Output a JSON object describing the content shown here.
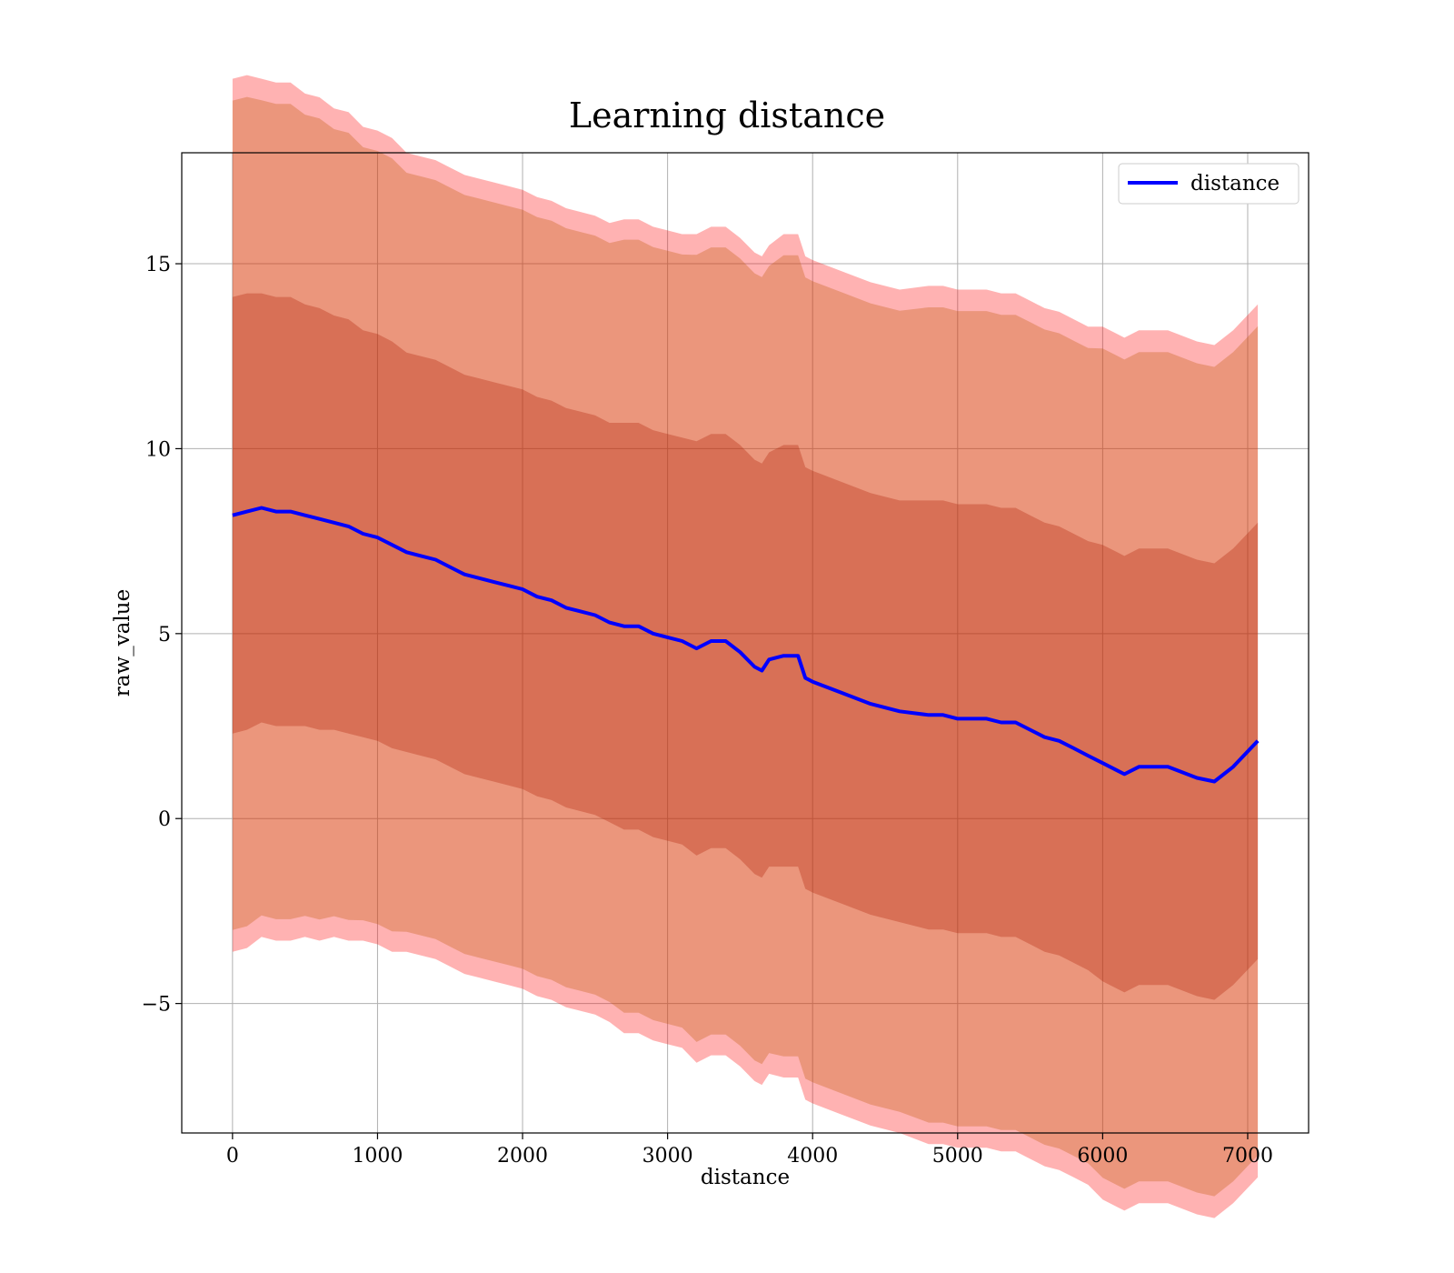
{
  "chart_data": {
    "type": "line",
    "title": "Learning distance",
    "xlabel": "distance",
    "ylabel": "raw_value",
    "xlim": [
      -350,
      7420
    ],
    "ylim": [
      -8.5,
      18
    ],
    "x_ticks": [
      0,
      1000,
      2000,
      3000,
      4000,
      5000,
      6000,
      7000
    ],
    "x_tick_labels": [
      "0",
      "1000",
      "2000",
      "3000",
      "4000",
      "5000",
      "6000",
      "7000"
    ],
    "y_ticks": [
      -5,
      0,
      5,
      10,
      15
    ],
    "y_tick_labels": [
      "−5",
      "0",
      "5",
      "10",
      "15"
    ],
    "grid": true,
    "legend_position": "top-right",
    "series": [
      {
        "name": "distance",
        "color": "#0000ff",
        "x": [
          0,
          100,
          200,
          300,
          400,
          500,
          600,
          700,
          800,
          900,
          1000,
          1100,
          1200,
          1300,
          1400,
          1500,
          1600,
          1700,
          1800,
          1900,
          2000,
          2100,
          2200,
          2300,
          2400,
          2500,
          2600,
          2700,
          2800,
          2900,
          3000,
          3100,
          3200,
          3300,
          3400,
          3500,
          3600,
          3650,
          3700,
          3800,
          3900,
          3950,
          4000,
          4200,
          4400,
          4600,
          4800,
          4900,
          5000,
          5100,
          5200,
          5300,
          5400,
          5500,
          5600,
          5700,
          5800,
          5900,
          6000,
          6100,
          6150,
          6250,
          6450,
          6650,
          6770,
          6900,
          7070
        ],
        "y": [
          8.2,
          8.3,
          8.4,
          8.3,
          8.3,
          8.2,
          8.1,
          8.0,
          7.9,
          7.7,
          7.6,
          7.4,
          7.2,
          7.1,
          7.0,
          6.8,
          6.6,
          6.5,
          6.4,
          6.3,
          6.2,
          6.0,
          5.9,
          5.7,
          5.6,
          5.5,
          5.3,
          5.2,
          5.2,
          5.0,
          4.9,
          4.8,
          4.6,
          4.8,
          4.8,
          4.5,
          4.1,
          4.0,
          4.3,
          4.4,
          4.4,
          3.8,
          3.7,
          3.4,
          3.1,
          2.9,
          2.8,
          2.8,
          2.7,
          2.7,
          2.7,
          2.6,
          2.6,
          2.4,
          2.2,
          2.1,
          1.9,
          1.7,
          1.5,
          1.3,
          1.2,
          1.4,
          1.4,
          1.1,
          1.0,
          1.4,
          2.1
        ],
        "std": [
          5.9,
          5.9,
          5.8,
          5.8,
          5.8,
          5.7,
          5.7,
          5.6,
          5.6,
          5.5,
          5.5,
          5.5,
          5.4,
          5.4,
          5.4,
          5.4,
          5.4,
          5.4,
          5.4,
          5.4,
          5.4,
          5.4,
          5.4,
          5.4,
          5.4,
          5.4,
          5.4,
          5.5,
          5.5,
          5.5,
          5.5,
          5.5,
          5.6,
          5.6,
          5.6,
          5.6,
          5.6,
          5.6,
          5.6,
          5.7,
          5.7,
          5.7,
          5.7,
          5.7,
          5.7,
          5.7,
          5.8,
          5.8,
          5.8,
          5.8,
          5.8,
          5.8,
          5.8,
          5.8,
          5.8,
          5.8,
          5.8,
          5.8,
          5.9,
          5.9,
          5.9,
          5.9,
          5.9,
          5.9,
          5.9,
          5.9,
          5.9
        ]
      }
    ],
    "bands": [
      {
        "width_std": 1.0,
        "color": "#800000",
        "opacity": 0.3
      },
      {
        "width_std": 1.9,
        "color": "#a07a00",
        "opacity": 0.3
      },
      {
        "width_std": 2.0,
        "color": "#ff0000",
        "opacity": 0.3
      }
    ]
  }
}
